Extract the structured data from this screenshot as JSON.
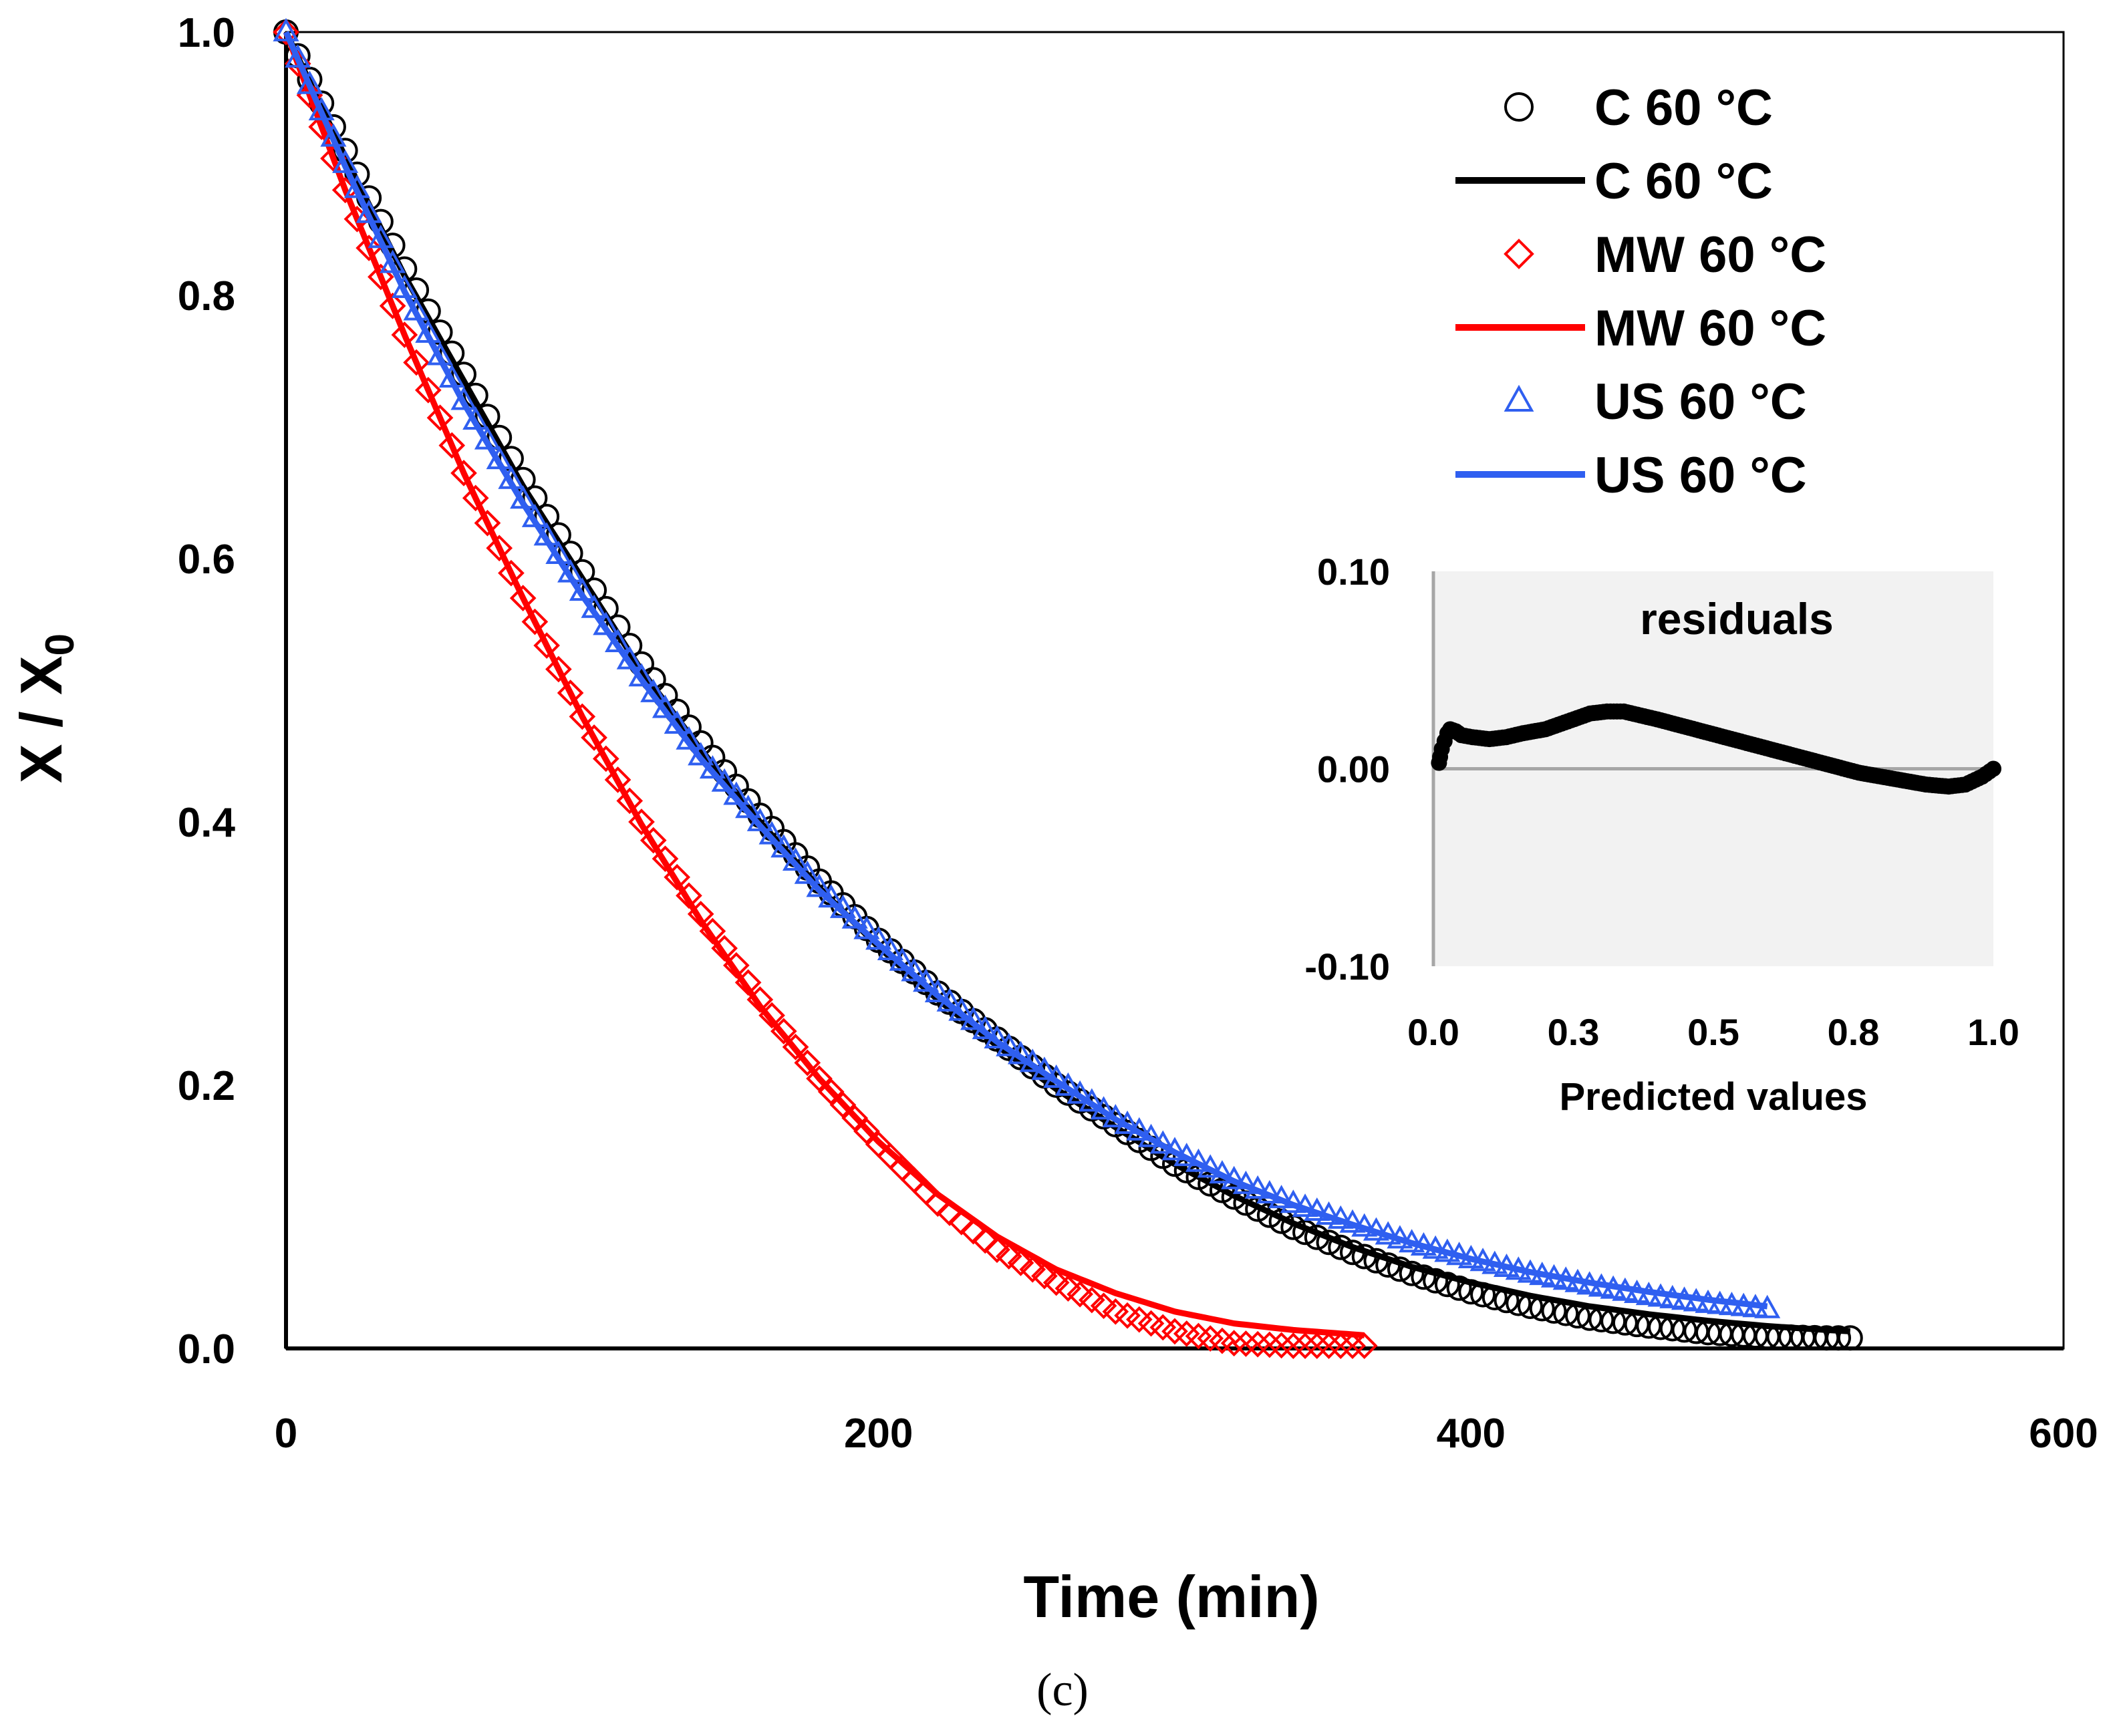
{
  "chart_data": [
    {
      "type": "scatter",
      "title": "",
      "xlabel": "Time (min)",
      "ylabel_main": "X / X",
      "ylabel_sub": "0",
      "xlim": [
        0,
        600
      ],
      "ylim": [
        0,
        1.0
      ],
      "xticks": [
        0,
        200,
        400,
        600
      ],
      "yticks": [
        0.0,
        0.2,
        0.4,
        0.6,
        0.8,
        1.0
      ],
      "xtick_labels": [
        "0",
        "200",
        "400",
        "600"
      ],
      "ytick_labels": [
        "0.0",
        "0.2",
        "0.4",
        "0.6",
        "0.8",
        "1.0"
      ],
      "legend_position": "top-right",
      "series": [
        {
          "name": "C 60 °C",
          "kind": "markers",
          "marker": "circle",
          "color": "#000000",
          "x": [
            0,
            20,
            40,
            60,
            80,
            100,
            120,
            140,
            160,
            180,
            200,
            220,
            240,
            260,
            280,
            300,
            320,
            340,
            360,
            380,
            400,
            420,
            440,
            460,
            480,
            500,
            520,
            528
          ],
          "y": [
            1.0,
            0.91,
            0.82,
            0.74,
            0.66,
            0.59,
            0.52,
            0.46,
            0.405,
            0.355,
            0.31,
            0.27,
            0.235,
            0.2,
            0.17,
            0.14,
            0.115,
            0.092,
            0.073,
            0.057,
            0.043,
            0.032,
            0.023,
            0.017,
            0.012,
            0.009,
            0.008,
            0.008
          ]
        },
        {
          "name": "C 60 °C",
          "kind": "line",
          "color": "#000000",
          "x": [
            0,
            20,
            40,
            60,
            80,
            100,
            120,
            140,
            160,
            180,
            200,
            220,
            240,
            260,
            280,
            300,
            320,
            340,
            360,
            380,
            400,
            420,
            440,
            460,
            480,
            500,
            520,
            528
          ],
          "y": [
            1.0,
            0.905,
            0.815,
            0.735,
            0.655,
            0.585,
            0.515,
            0.455,
            0.4,
            0.35,
            0.305,
            0.265,
            0.23,
            0.197,
            0.168,
            0.14,
            0.116,
            0.095,
            0.077,
            0.062,
            0.05,
            0.04,
            0.032,
            0.026,
            0.021,
            0.017,
            0.014,
            0.013
          ]
        },
        {
          "name": "MW 60 °C",
          "kind": "markers",
          "marker": "diamond",
          "color": "#ff0000",
          "x": [
            0,
            20,
            40,
            60,
            80,
            100,
            120,
            140,
            160,
            180,
            200,
            220,
            240,
            260,
            280,
            300,
            320,
            340,
            364
          ],
          "y": [
            1.0,
            0.88,
            0.77,
            0.665,
            0.57,
            0.48,
            0.4,
            0.33,
            0.265,
            0.205,
            0.155,
            0.11,
            0.075,
            0.05,
            0.028,
            0.013,
            0.004,
            0.002,
            0.002
          ]
        },
        {
          "name": "MW 60 °C",
          "kind": "line",
          "color": "#ff0000",
          "x": [
            0,
            20,
            40,
            60,
            80,
            100,
            120,
            140,
            160,
            180,
            200,
            220,
            240,
            260,
            280,
            300,
            320,
            340,
            364
          ],
          "y": [
            1.0,
            0.88,
            0.77,
            0.665,
            0.57,
            0.48,
            0.398,
            0.325,
            0.26,
            0.205,
            0.157,
            0.117,
            0.085,
            0.06,
            0.042,
            0.028,
            0.019,
            0.014,
            0.01
          ]
        },
        {
          "name": "US 60 °C",
          "kind": "markers",
          "marker": "triangle",
          "color": "#2f5ff0",
          "x": [
            0,
            20,
            40,
            60,
            80,
            100,
            120,
            140,
            160,
            180,
            200,
            220,
            240,
            260,
            280,
            300,
            320,
            340,
            360,
            380,
            400,
            420,
            440,
            460,
            480,
            500
          ],
          "y": [
            1.0,
            0.9,
            0.805,
            0.72,
            0.645,
            0.575,
            0.51,
            0.45,
            0.4,
            0.35,
            0.31,
            0.27,
            0.235,
            0.205,
            0.175,
            0.15,
            0.128,
            0.11,
            0.095,
            0.08,
            0.068,
            0.057,
            0.048,
            0.04,
            0.034,
            0.03
          ]
        },
        {
          "name": "US 60 °C",
          "kind": "line",
          "color": "#2f5ff0",
          "x": [
            0,
            20,
            40,
            60,
            80,
            100,
            120,
            140,
            160,
            180,
            200,
            220,
            240,
            260,
            280,
            300,
            320,
            340,
            360,
            380,
            400,
            420,
            440,
            460,
            480,
            500
          ],
          "y": [
            1.0,
            0.898,
            0.803,
            0.718,
            0.642,
            0.572,
            0.508,
            0.448,
            0.397,
            0.348,
            0.307,
            0.268,
            0.233,
            0.203,
            0.174,
            0.149,
            0.127,
            0.109,
            0.094,
            0.08,
            0.068,
            0.058,
            0.05,
            0.043,
            0.037,
            0.032
          ]
        }
      ]
    },
    {
      "type": "scatter",
      "title": "residuals",
      "xlabel": "Predicted values",
      "xlim": [
        0,
        1.0
      ],
      "ylim": [
        -0.1,
        0.1
      ],
      "xticks": [
        0.0,
        0.25,
        0.5,
        0.75,
        1.0
      ],
      "yticks": [
        -0.1,
        0.0,
        0.1
      ],
      "xtick_labels": [
        "0.0",
        "0.3",
        "0.5",
        "0.8",
        "1.0"
      ],
      "ytick_labels": [
        "-0.10",
        "0.00",
        "0.10"
      ],
      "background": "#f2f2f2",
      "series": [
        {
          "name": "residuals",
          "kind": "markers",
          "marker": "filled-circle",
          "color": "#000000",
          "x": [
            0.01,
            0.012,
            0.015,
            0.02,
            0.025,
            0.03,
            0.04,
            0.05,
            0.07,
            0.1,
            0.13,
            0.16,
            0.2,
            0.24,
            0.28,
            0.31,
            0.34,
            0.37,
            0.4,
            0.44,
            0.48,
            0.52,
            0.56,
            0.6,
            0.64,
            0.68,
            0.72,
            0.76,
            0.8,
            0.84,
            0.88,
            0.92,
            0.95,
            0.98,
            1.0
          ],
          "y": [
            0.003,
            0.006,
            0.01,
            0.014,
            0.018,
            0.02,
            0.019,
            0.017,
            0.016,
            0.015,
            0.016,
            0.018,
            0.02,
            0.024,
            0.028,
            0.029,
            0.029,
            0.027,
            0.025,
            0.022,
            0.019,
            0.016,
            0.013,
            0.01,
            0.007,
            0.004,
            0.001,
            -0.002,
            -0.004,
            -0.006,
            -0.008,
            -0.009,
            -0.008,
            -0.004,
            0.0
          ]
        }
      ]
    }
  ],
  "caption": "(c)",
  "legend": [
    {
      "label": "C 60 °C",
      "kind": "markers",
      "marker": "circle",
      "color": "#000000"
    },
    {
      "label": "C 60 °C",
      "kind": "line",
      "color": "#000000"
    },
    {
      "label": "MW 60 °C",
      "kind": "markers",
      "marker": "diamond",
      "color": "#ff0000"
    },
    {
      "label": "MW 60 °C",
      "kind": "line",
      "color": "#ff0000"
    },
    {
      "label": "US 60 °C",
      "kind": "markers",
      "marker": "triangle",
      "color": "#2f5ff0"
    },
    {
      "label": "US 60 °C",
      "kind": "line",
      "color": "#2f5ff0"
    }
  ]
}
